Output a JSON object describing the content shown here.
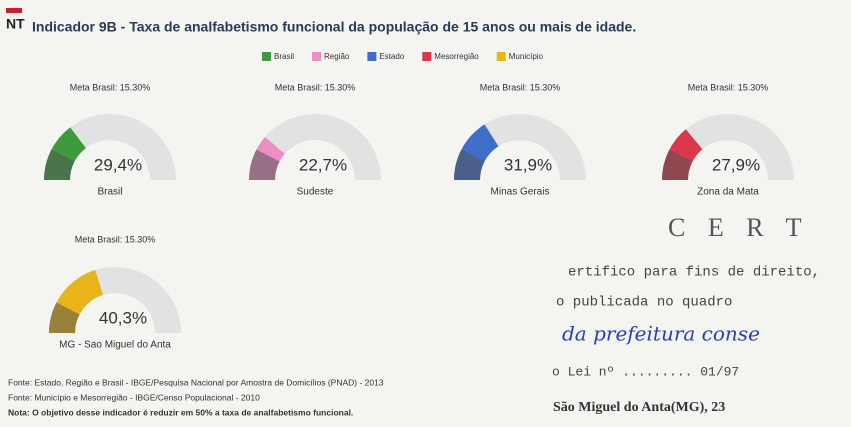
{
  "header": {
    "badge": "NT"
  },
  "chart_data": {
    "type": "gauge",
    "title": "Indicador 9B - Taxa de analfabetismo funcional da população de 15 anos ou mais de idade.",
    "legend": [
      {
        "name": "Brasil",
        "color": "#3d9a3d"
      },
      {
        "name": "Região",
        "color": "#ec8fc4"
      },
      {
        "name": "Estado",
        "color": "#3f6ec9"
      },
      {
        "name": "Mesorregião",
        "color": "#d8384a"
      },
      {
        "name": "Município",
        "color": "#e8b41a"
      }
    ],
    "ylim": [
      0,
      100
    ],
    "gauges": [
      {
        "label": "Brasil",
        "value": 29.4,
        "value_label": "29,4%",
        "color": "#3d9a3d",
        "target": 15.3,
        "target_label": "Meta Brasil: 15.30%"
      },
      {
        "label": "Sudeste",
        "value": 22.7,
        "value_label": "22,7%",
        "color": "#ec8fc4",
        "target": 15.3,
        "target_label": "Meta Brasil: 15.30%"
      },
      {
        "label": "Minas Gerais",
        "value": 31.9,
        "value_label": "31,9%",
        "color": "#3f6ec9",
        "target": 15.3,
        "target_label": "Meta Brasil: 15.30%"
      },
      {
        "label": "Zona da Mata",
        "value": 27.9,
        "value_label": "27,9%",
        "color": "#d8384a",
        "target": 15.3,
        "target_label": "Meta Brasil: 15.30%"
      },
      {
        "label": "MG - Sao Miguel do Anta",
        "value": 40.3,
        "value_label": "40,3%",
        "color": "#e8b41a",
        "target": 15.3,
        "target_label": "Meta Brasil: 15.30%"
      }
    ]
  },
  "footer": {
    "sources": [
      "Fonte: Estado, Região e Brasil - IBGE/Pesquisa Nacional por Amostra de Domicílios (PNAD) - 2013",
      "Fonte: Município e Mesorregião - IBGE/Censo Populacional - 2010"
    ],
    "note": "Nota: O objetivo desse indicador é reduzir em 50% a taxa de analfabetismo funcional."
  },
  "stamp": {
    "heading": "C E R T",
    "lines": [
      "ertifico para fins de direito,",
      "o publicada no quadro",
      "da prefeitura   conse",
      "o Lei nº ......... 01/97",
      "São Miguel do Anta(MG), 23"
    ]
  }
}
